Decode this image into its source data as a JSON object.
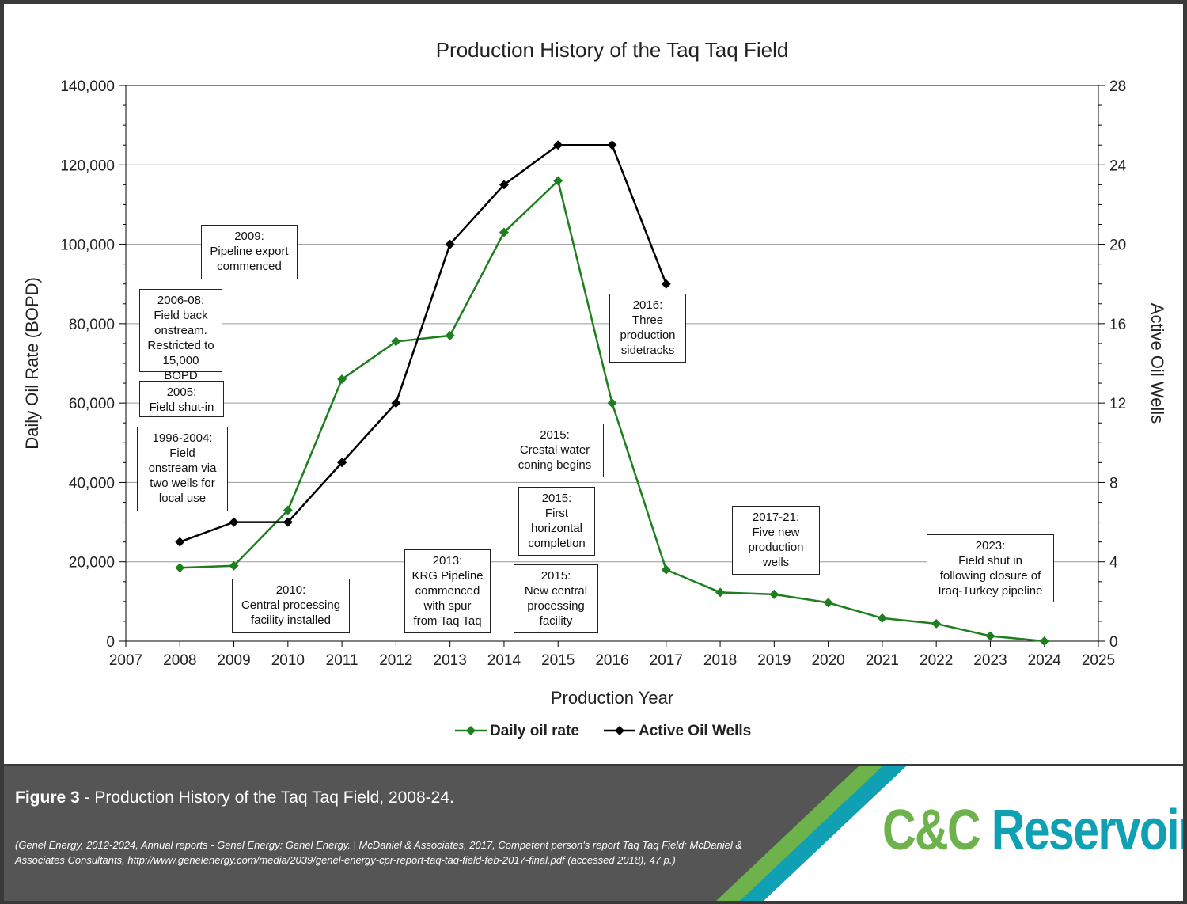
{
  "chart_data": {
    "type": "line",
    "title": "Production History of the Taq Taq Field",
    "xlabel": "Production Year",
    "ylabel": "Daily Oil Rate (BOPD)",
    "y2label": "Active Oil Wells",
    "xlim": [
      2007,
      2025
    ],
    "ylim": [
      0,
      140000
    ],
    "y2lim": [
      0,
      28
    ],
    "x_ticks": [
      "2007",
      "2008",
      "2009",
      "2010",
      "2011",
      "2012",
      "2013",
      "2014",
      "2015",
      "2016",
      "2017",
      "2018",
      "2019",
      "2020",
      "2021",
      "2022",
      "2023",
      "2024",
      "2025"
    ],
    "y_ticks": [
      "0",
      "20,000",
      "40,000",
      "60,000",
      "80,000",
      "100,000",
      "120,000",
      "140,000"
    ],
    "y2_ticks": [
      "0",
      "4",
      "8",
      "12",
      "16",
      "20",
      "24",
      "28"
    ],
    "grid": true,
    "legend_position": "bottom-center",
    "series": [
      {
        "name": "Daily oil rate",
        "axis": "left",
        "color": "#1e7f1e",
        "marker": "diamond",
        "x": [
          2008,
          2009,
          2010,
          2011,
          2012,
          2013,
          2014,
          2015,
          2016,
          2017,
          2018,
          2019,
          2020,
          2021,
          2022,
          2023,
          2024
        ],
        "values": [
          18500,
          19000,
          33000,
          66000,
          75500,
          77000,
          103000,
          116000,
          60000,
          18000,
          12300,
          11800,
          9700,
          5800,
          4400,
          1300,
          0
        ]
      },
      {
        "name": "Active Oil Wells",
        "axis": "right",
        "color": "#000000",
        "marker": "diamond",
        "x": [
          2008,
          2009,
          2010,
          2011,
          2012,
          2013,
          2014,
          2015,
          2016,
          2017
        ],
        "values": [
          5,
          6,
          6,
          9,
          12,
          20,
          23,
          25,
          25,
          18
        ]
      }
    ],
    "annotations": [
      {
        "id": "ann-2009",
        "text": "2009:\nPipeline export\ncommenced"
      },
      {
        "id": "ann-2006",
        "text": "2006-08:\nField back\nonstream.\nRestricted to\n15,000 BOPD"
      },
      {
        "id": "ann-2005",
        "text": "2005:\nField shut-in"
      },
      {
        "id": "ann-1996",
        "text": "1996-2004:\nField\nonstream via\ntwo wells for\nlocal use"
      },
      {
        "id": "ann-2010",
        "text": "2010:\nCentral processing\nfacility installed"
      },
      {
        "id": "ann-2013",
        "text": "2013:\nKRG Pipeline\ncommenced\nwith spur\nfrom Taq Taq"
      },
      {
        "id": "ann-2015a",
        "text": "2015:\nCrestal water\nconing begins"
      },
      {
        "id": "ann-2015b",
        "text": "2015:\nFirst\nhorizontal\ncompletion"
      },
      {
        "id": "ann-2015c",
        "text": "2015:\nNew central\nprocessing\nfacility"
      },
      {
        "id": "ann-2016",
        "text": "2016:\nThree\nproduction\nsidetracks"
      },
      {
        "id": "ann-2017",
        "text": "2017-21:\nFive new\nproduction\nwells"
      },
      {
        "id": "ann-2023",
        "text": "2023:\nField shut in\nfollowing closure of\nIraq-Turkey pipeline"
      }
    ]
  },
  "footer": {
    "caption_bold": "Figure 3",
    "caption_rest": " - Production History of the Taq Taq Field, 2008-24.",
    "source": "(Genel Energy, 2012-2024, Annual reports - Genel Energy: Genel Energy. | McDaniel & Associates, 2017, Competent person's report Taq Taq Field: McDaniel & Associates Consultants, http://www.genelenergy.com/media/2039/genel-energy-cpr-report-taq-taq-field-feb-2017-final.pdf (accessed 2018), 47 p.)",
    "logo_cc": "C&C",
    "logo_res": " Reservoirs"
  }
}
